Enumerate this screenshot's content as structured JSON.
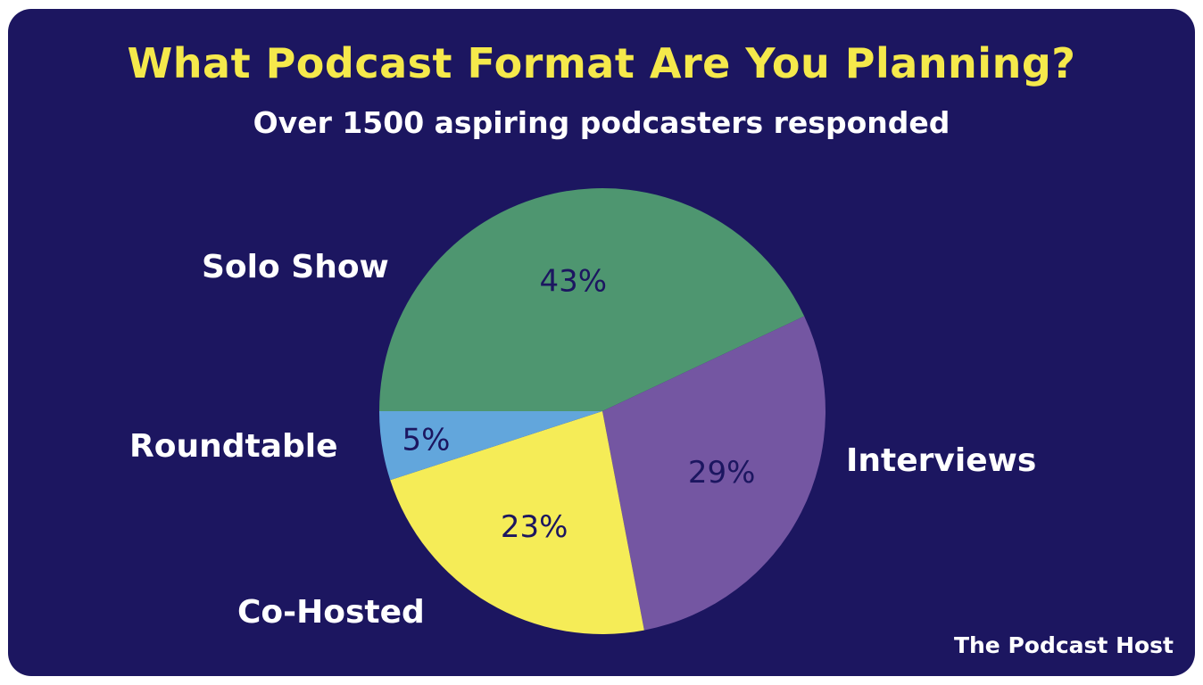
{
  "brand": "The Podcast Host",
  "chart_data": {
    "type": "pie",
    "title": "What Podcast Format Are You Planning?",
    "subtitle": "Over 1500 aspiring podcasters responded",
    "slices": [
      {
        "label": "Solo Show",
        "value": 43,
        "value_label": "43%",
        "color": "#4e9670"
      },
      {
        "label": "Interviews",
        "value": 29,
        "value_label": "29%",
        "color": "#7456a2"
      },
      {
        "label": "Co-Hosted",
        "value": 23,
        "value_label": "23%",
        "color": "#f5ec57"
      },
      {
        "label": "Roundtable",
        "value": 5,
        "value_label": "5%",
        "color": "#62a6dc"
      }
    ]
  }
}
